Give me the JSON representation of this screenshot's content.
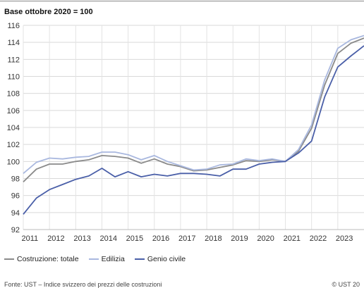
{
  "chart_data": {
    "type": "line",
    "title": "Base ottobre 2020 = 100",
    "xlabel": "",
    "ylabel": "",
    "ylim": [
      92,
      116
    ],
    "xlim": [
      2010.75,
      2023.75
    ],
    "yticks": [
      92,
      94,
      96,
      98,
      100,
      102,
      104,
      106,
      108,
      110,
      112,
      114,
      116
    ],
    "xticks": [
      "2011",
      "2012",
      "2013",
      "2014",
      "2015",
      "2016",
      "2017",
      "2018",
      "2019",
      "2020",
      "2021",
      "2022",
      "2023"
    ],
    "grid": true,
    "legend_position": "bottom-left",
    "x": [
      2010.75,
      2011.25,
      2011.75,
      2012.25,
      2012.75,
      2013.25,
      2013.75,
      2014.25,
      2014.75,
      2015.25,
      2015.75,
      2016.25,
      2016.75,
      2017.25,
      2017.75,
      2018.25,
      2018.75,
      2019.25,
      2019.75,
      2020.25,
      2020.75,
      2021.25,
      2021.75,
      2022.25,
      2022.75,
      2023.25,
      2023.75
    ],
    "series": [
      {
        "name": "Costruzione: totale",
        "color": "#8a8a8a",
        "values": [
          97.6,
          99.1,
          99.7,
          99.7,
          100.0,
          100.2,
          100.7,
          100.6,
          100.4,
          99.8,
          100.3,
          99.7,
          99.4,
          98.9,
          99.0,
          99.3,
          99.6,
          100.1,
          100.0,
          100.2,
          100.0,
          101.2,
          103.9,
          109.0,
          112.7,
          113.9,
          114.5
        ]
      },
      {
        "name": "Edilizia",
        "color": "#a9b8df",
        "values": [
          98.6,
          99.9,
          100.4,
          100.3,
          100.5,
          100.6,
          101.1,
          101.1,
          100.8,
          100.2,
          100.7,
          100.0,
          99.5,
          99.0,
          99.1,
          99.6,
          99.7,
          100.3,
          100.1,
          100.3,
          100.0,
          101.4,
          104.3,
          109.6,
          113.3,
          114.3,
          114.8
        ]
      },
      {
        "name": "Genio civile",
        "color": "#4a5fa8",
        "values": [
          93.8,
          95.7,
          96.7,
          97.3,
          97.9,
          98.3,
          99.2,
          98.2,
          98.8,
          98.2,
          98.5,
          98.3,
          98.6,
          98.6,
          98.5,
          98.3,
          99.1,
          99.1,
          99.7,
          99.9,
          100.0,
          101.0,
          102.4,
          107.6,
          111.1,
          112.4,
          113.6
        ]
      }
    ]
  },
  "footer": {
    "source": "Fonte: UST – Indice svizzero dei prezzi delle costruzioni",
    "copyright": "© UST 20"
  }
}
